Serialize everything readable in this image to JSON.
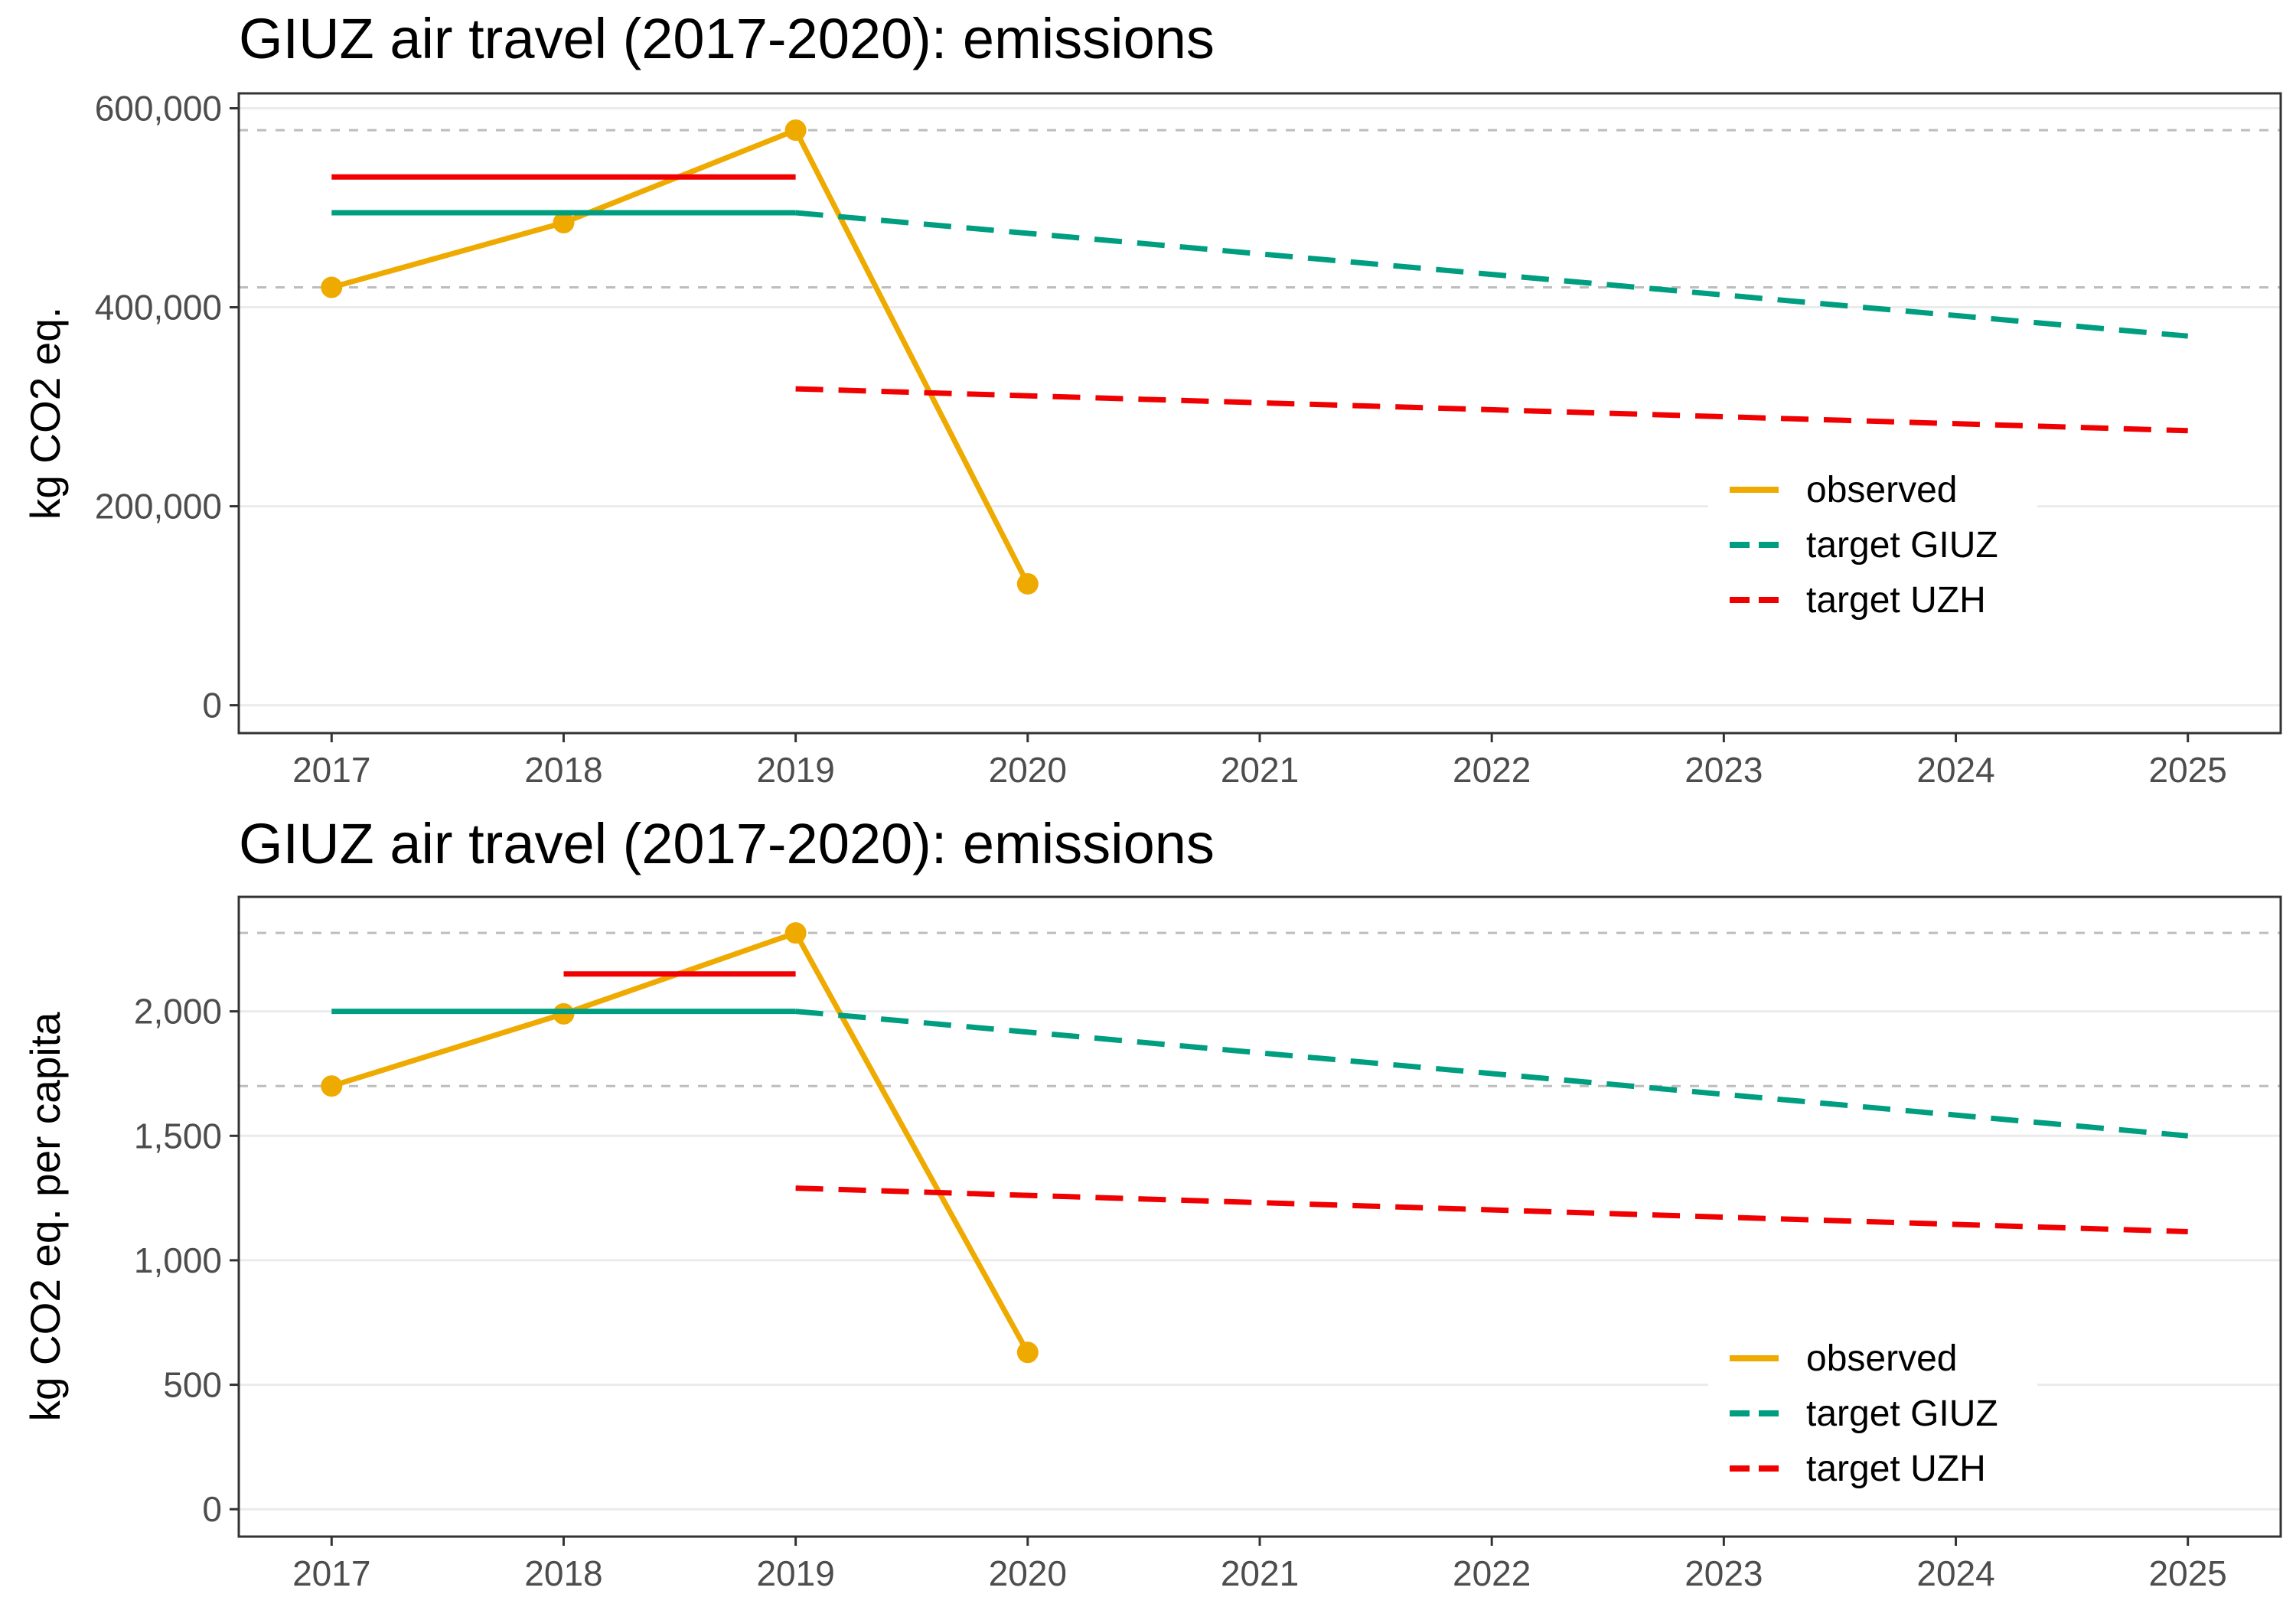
{
  "colors": {
    "observed": "#EFAA00",
    "target_giuz": "#009E80",
    "target_uzh": "#F00000",
    "reference": "#BDBDBD",
    "grid": "#EBEBEB",
    "frame": "#333333"
  },
  "chart_data": [
    {
      "type": "line",
      "title": "GIUZ air travel (2017-2020): emissions",
      "ylabel": "kg CO2 eq.",
      "xlabel": "",
      "xlim": [
        2016.6,
        2025.4
      ],
      "ylim": [
        -28000,
        615000
      ],
      "x_ticks": [
        "2017",
        "2018",
        "2019",
        "2020",
        "2021",
        "2022",
        "2023",
        "2024",
        "2025"
      ],
      "y_ticks": [
        {
          "value": 0,
          "label": "0"
        },
        {
          "value": 200000,
          "label": "200,000"
        },
        {
          "value": 400000,
          "label": "400,000"
        },
        {
          "value": 600000,
          "label": "600,000"
        }
      ],
      "reference_lines": [
        420000,
        578000
      ],
      "grid": true,
      "legend_position": "bottom-right",
      "legend": [
        "observed",
        "target GIUZ",
        "target UZH"
      ],
      "series": [
        {
          "name": "observed",
          "style": "solid",
          "points": true,
          "x": [
            2017,
            2018,
            2019,
            2020
          ],
          "y": [
            420000,
            485000,
            578000,
            122000
          ]
        },
        {
          "name": "target GIUZ",
          "style": "solid",
          "x": [
            2017,
            2019
          ],
          "y": [
            495000,
            495000
          ]
        },
        {
          "name": "target GIUZ",
          "style": "dashed",
          "x": [
            2019,
            2025
          ],
          "y": [
            495000,
            371000
          ]
        },
        {
          "name": "target UZH",
          "style": "solid",
          "x": [
            2017,
            2019
          ],
          "y": [
            531000,
            531000
          ]
        },
        {
          "name": "target UZH",
          "style": "dashed",
          "x": [
            2019,
            2025
          ],
          "y": [
            318000,
            276000
          ]
        }
      ]
    },
    {
      "type": "line",
      "title": "GIUZ air travel (2017-2020): emissions",
      "ylabel": "kg CO2 eq. per capita",
      "xlabel": "",
      "xlim": [
        2016.6,
        2025.4
      ],
      "ylim": [
        -110,
        2460
      ],
      "x_ticks": [
        "2017",
        "2018",
        "2019",
        "2020",
        "2021",
        "2022",
        "2023",
        "2024",
        "2025"
      ],
      "y_ticks": [
        {
          "value": 0,
          "label": "0"
        },
        {
          "value": 500,
          "label": "500"
        },
        {
          "value": 1000,
          "label": "1,000"
        },
        {
          "value": 1500,
          "label": "1,500"
        },
        {
          "value": 2000,
          "label": "2,000"
        }
      ],
      "reference_lines": [
        1700,
        2315
      ],
      "grid": true,
      "legend_position": "bottom-right",
      "legend": [
        "observed",
        "target GIUZ",
        "target UZH"
      ],
      "series": [
        {
          "name": "observed",
          "style": "solid",
          "points": true,
          "x": [
            2017,
            2018,
            2019,
            2020
          ],
          "y": [
            1700,
            1990,
            2315,
            630
          ]
        },
        {
          "name": "target GIUZ",
          "style": "solid",
          "x": [
            2017,
            2019
          ],
          "y": [
            2000,
            2000
          ]
        },
        {
          "name": "target GIUZ",
          "style": "dashed",
          "x": [
            2019,
            2025
          ],
          "y": [
            2000,
            1500
          ]
        },
        {
          "name": "target UZH",
          "style": "solid",
          "x": [
            2018,
            2019
          ],
          "y": [
            2150,
            2150
          ]
        },
        {
          "name": "target UZH",
          "style": "dashed",
          "x": [
            2019,
            2025
          ],
          "y": [
            1290,
            1115
          ]
        }
      ]
    }
  ]
}
